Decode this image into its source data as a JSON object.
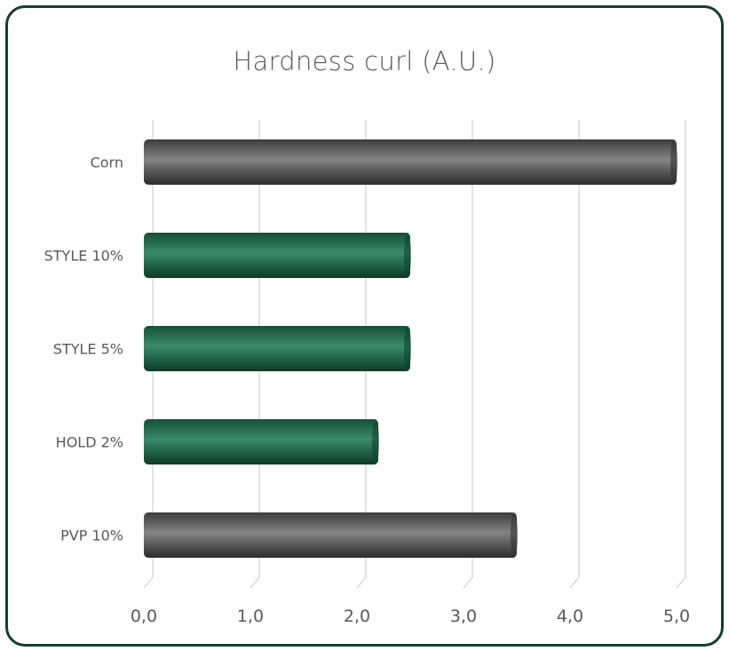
{
  "chart_data": {
    "type": "bar",
    "orientation": "horizontal",
    "title": "Hardness curl (A.U.)",
    "categories": [
      "Corn",
      "STYLE 10%",
      "STYLE 5%",
      "HOLD 2%",
      "PVP 10%"
    ],
    "values": [
      5.0,
      2.5,
      2.5,
      2.2,
      3.5
    ],
    "bar_colors": [
      "#4d4d4d",
      "#1b6346",
      "#1b6346",
      "#1b6346",
      "#4d4d4d"
    ],
    "xlim": [
      0,
      5
    ],
    "xticks": [
      0,
      1,
      2,
      3,
      4,
      5
    ],
    "xtick_labels": [
      "0,0",
      "1,0",
      "2,0",
      "3,0",
      "4,0",
      "5,0"
    ],
    "grid": "vertical",
    "legend": "none"
  },
  "colors": {
    "frame_border": "#123f2b",
    "grid_line": "#d9d9d9",
    "text": "#595959",
    "bar_gray": "#4d4d4d",
    "bar_green": "#1b6346"
  }
}
